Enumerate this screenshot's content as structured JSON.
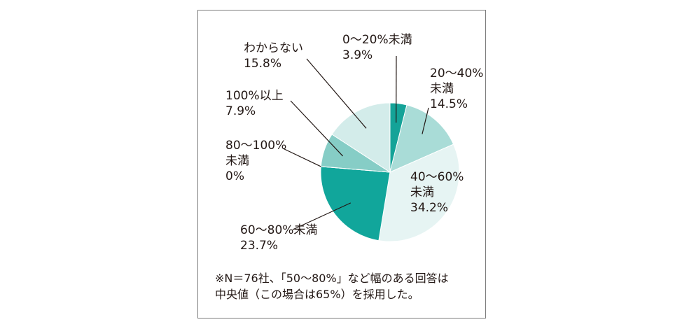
{
  "chart_data": {
    "type": "pie",
    "slices": [
      {
        "label": [
          "0～20%未満",
          "3.9%"
        ],
        "value": 3.9,
        "color": "#14a398"
      },
      {
        "label": [
          "20～40%",
          "未満",
          "14.5%"
        ],
        "value": 14.5,
        "color": "#a9dcd7"
      },
      {
        "label": [
          "40～60%",
          "未満",
          "34.2%"
        ],
        "value": 34.2,
        "color": "#e6f4f3"
      },
      {
        "label": [
          "60～80%未満",
          "23.7%"
        ],
        "value": 23.7,
        "color": "#11a69b"
      },
      {
        "label": [
          "80～100%",
          "未満",
          "0%"
        ],
        "value": 0,
        "color": "#0f8c83"
      },
      {
        "label": [
          "100%以上",
          "7.9%"
        ],
        "value": 7.9,
        "color": "#86cdc6"
      },
      {
        "label": [
          "わからない",
          "15.8%"
        ],
        "value": 15.8,
        "color": "#d3ecea"
      }
    ]
  },
  "note": {
    "line1": "※N＝76社、「50～80%」など幅のある回答は",
    "line2": "中央値（この場合は65%）を採用した。"
  }
}
